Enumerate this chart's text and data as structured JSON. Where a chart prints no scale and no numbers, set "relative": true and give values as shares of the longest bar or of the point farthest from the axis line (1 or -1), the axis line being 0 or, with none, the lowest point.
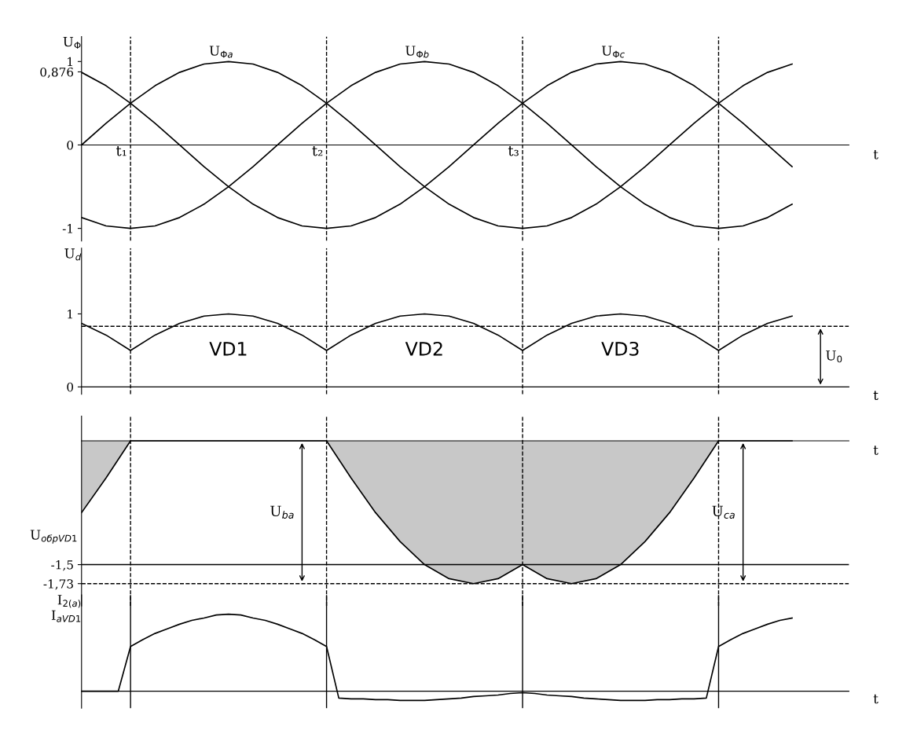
{
  "chart_data": [
    {
      "type": "line",
      "ylabel": "U$_{Φ}$",
      "xlabel": "t",
      "ylim": [
        -1.15,
        1.3
      ],
      "tick_labels": "y",
      "yticks": [
        -1,
        0,
        {
          "value": 0.876,
          "label": "0,876"
        },
        1
      ],
      "categories": [
        null,
        null,
        null,
        null,
        null,
        null,
        null,
        null,
        null,
        null,
        null,
        null,
        null,
        null,
        null,
        null,
        null,
        null,
        null,
        null,
        null,
        null,
        null,
        null,
        null,
        null,
        null,
        null,
        null,
        null
      ],
      "series": [
        {
          "name": "U$_{Φa}$",
          "color": "#000000",
          "values": [
            0,
            0.26,
            0.5,
            0.71,
            0.87,
            0.97,
            1,
            0.97,
            0.87,
            0.71,
            0.5,
            0.26,
            0,
            -0.26,
            -0.5,
            -0.71,
            -0.87,
            -0.97,
            -1,
            -0.97,
            -0.87,
            -0.71,
            -0.5,
            -0.26,
            0,
            0.26,
            0.5,
            0.71,
            0.87,
            0.97
          ]
        },
        {
          "name": "U$_{Φb}$",
          "color": "#000000",
          "values": [
            -0.87,
            -0.97,
            -1,
            -0.97,
            -0.87,
            -0.71,
            -0.5,
            -0.26,
            0,
            0.26,
            0.5,
            0.71,
            0.87,
            0.97,
            1,
            0.97,
            0.87,
            0.71,
            0.5,
            0.26,
            0,
            -0.26,
            -0.5,
            -0.71,
            -0.87,
            -0.97,
            -1,
            -0.97,
            -0.87,
            -0.71
          ]
        },
        {
          "name": "U$_{Φc}$",
          "color": "#000000",
          "values": [
            0.87,
            0.71,
            0.5,
            0.26,
            0,
            -0.26,
            -0.5,
            -0.71,
            -0.87,
            -0.97,
            -1,
            -0.97,
            -0.87,
            -0.71,
            -0.5,
            -0.26,
            0,
            0.26,
            0.5,
            0.71,
            0.87,
            0.97,
            1,
            0.97,
            0.87,
            0.71,
            0.5,
            0.26,
            0,
            -0.26
          ]
        }
      ],
      "annotations": [
        "t₁",
        "t₂",
        "t₃"
      ],
      "grid": true
    },
    {
      "type": "line",
      "ylabel": "U$_{d}$",
      "xlabel": "t",
      "ylim": [
        -0.1,
        1.9
      ],
      "tick_labels": "y",
      "yticks": [
        0,
        1
      ],
      "categories": [
        null,
        null,
        null,
        null,
        null,
        null,
        null,
        null,
        null,
        null,
        null,
        null,
        null,
        null,
        null,
        null,
        null,
        null,
        null,
        null,
        null,
        null,
        null,
        null,
        null,
        null,
        null,
        null,
        null,
        null
      ],
      "series": [
        {
          "color": "#000000",
          "values": [
            0.87,
            0.71,
            0.5,
            0.71,
            0.87,
            0.97,
            1,
            0.97,
            0.87,
            0.71,
            0.5,
            0.71,
            0.87,
            0.97,
            1,
            0.97,
            0.87,
            0.71,
            0.5,
            0.71,
            0.87,
            0.97,
            1,
            0.97,
            0.87,
            0.71,
            0.5,
            0.71,
            0.87,
            0.97
          ]
        }
      ],
      "ref_lines": [
        {
          "axis": "y",
          "value": 0.83,
          "label": "U$_{0}$",
          "line_style": "dashed"
        }
      ],
      "annotations": [
        "VD1",
        "VD2",
        "VD3"
      ],
      "grid": true
    },
    {
      "type": "area",
      "ylabel": "U$_{обрVD1}$",
      "xlabel": "t",
      "ylim": [
        -2.0,
        0.3
      ],
      "tick_labels": "y",
      "yticks": [
        {
          "value": -1.73,
          "label": "-1,73"
        },
        {
          "value": -1.5,
          "label": "-1,5"
        }
      ],
      "categories": [
        null,
        null,
        null,
        null,
        null,
        null,
        null,
        null,
        null,
        null,
        null,
        null,
        null,
        null,
        null,
        null,
        null,
        null,
        null,
        null,
        null,
        null,
        null,
        null,
        null,
        null,
        null,
        null,
        null,
        null
      ],
      "series": [
        {
          "color": "#c8c8c8",
          "values": [
            -0.87,
            -0.45,
            0,
            0,
            0,
            0,
            0,
            0,
            0,
            0,
            0,
            -0.45,
            -0.87,
            -1.22,
            -1.5,
            -1.67,
            -1.73,
            -1.67,
            -1.5,
            -1.67,
            -1.73,
            -1.67,
            -1.5,
            -1.22,
            -0.87,
            -0.45,
            0,
            0,
            0,
            0
          ]
        }
      ],
      "ref_lines": [
        {
          "axis": "y",
          "value": -1.5,
          "label": null,
          "line_style": "solid"
        },
        {
          "axis": "y",
          "value": -1.73,
          "label": null,
          "line_style": "dashed"
        }
      ],
      "annotations": [
        "U$_{ba}$",
        "U$_{ca}$"
      ],
      "grid": true
    },
    {
      "type": "line",
      "relative": true,
      "ylabel": "I$_{2(a)}$\nI$_{aVD1}$",
      "xlabel": "t",
      "tick_labels": false,
      "categories": [
        null,
        null,
        null,
        null,
        null,
        null,
        null,
        null,
        null,
        null,
        null,
        null,
        null,
        null,
        null,
        null,
        null,
        null,
        null,
        null,
        null,
        null,
        null,
        null,
        null,
        null,
        null,
        null,
        null,
        null,
        null,
        null,
        null,
        null,
        null,
        null,
        null,
        null,
        null,
        null,
        null,
        null,
        null,
        null,
        null,
        null,
        null,
        null,
        null,
        null,
        null,
        null,
        null,
        null,
        null,
        null,
        null,
        null,
        null
      ],
      "series": [
        {
          "color": "#000000",
          "values": [
            0,
            0,
            0,
            0,
            0.58,
            0.67,
            0.75,
            0.81,
            0.87,
            0.92,
            0.95,
            0.99,
            1,
            0.99,
            0.95,
            0.92,
            0.87,
            0.81,
            0.75,
            0.67,
            0.58,
            -0.09,
            -0.1,
            -0.1,
            -0.11,
            -0.11,
            -0.12,
            -0.12,
            -0.12,
            -0.11,
            -0.1,
            -0.09,
            -0.07,
            -0.06,
            -0.05,
            -0.03,
            -0.02,
            -0.03,
            -0.05,
            -0.06,
            -0.07,
            -0.09,
            -0.1,
            -0.11,
            -0.12,
            -0.12,
            -0.12,
            -0.11,
            -0.11,
            -0.1,
            -0.1,
            -0.09,
            0.58,
            0.67,
            0.75,
            0.81,
            0.87,
            0.92,
            0.95
          ]
        }
      ],
      "grid": true
    }
  ]
}
